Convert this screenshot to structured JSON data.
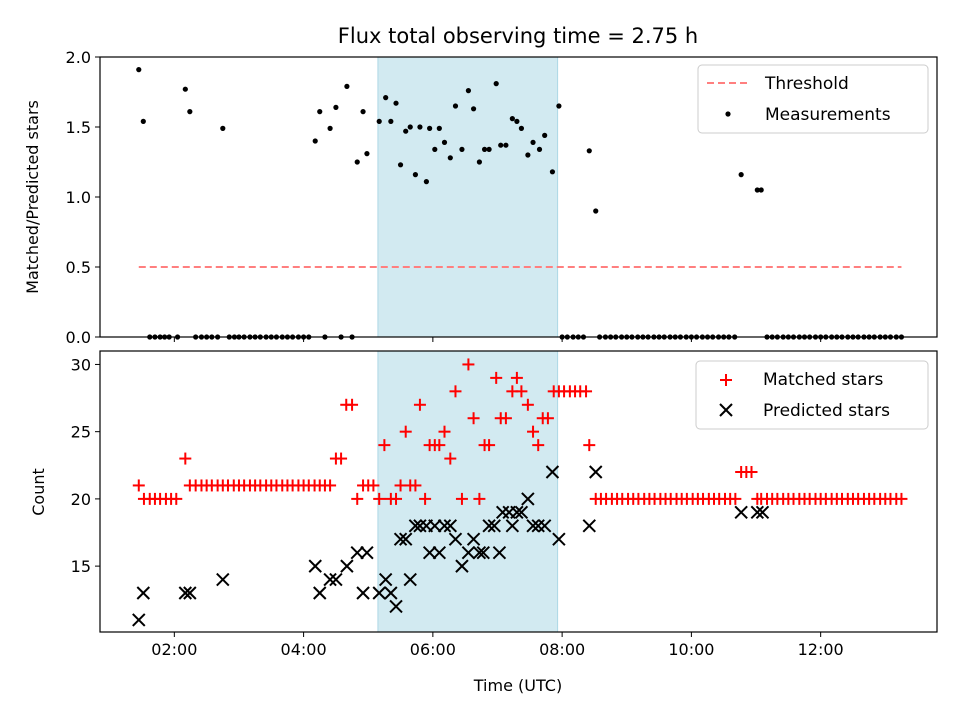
{
  "chart_data": {
    "title": "Flux total observing time = 2.75 h",
    "xlabel": "Time (UTC)",
    "x_unit": "hours",
    "xlim": [
      0.85,
      13.8
    ],
    "xticks": [
      {
        "value": 2,
        "label": "02:00"
      },
      {
        "value": 4,
        "label": "04:00"
      },
      {
        "value": 6,
        "label": "06:00"
      },
      {
        "value": 8,
        "label": "08:00"
      },
      {
        "value": 10,
        "label": "10:00"
      },
      {
        "value": 12,
        "label": "12:00"
      }
    ],
    "shaded_interval": {
      "start": 5.15,
      "end": 7.93,
      "color": "#add8e6"
    },
    "colors": {
      "threshold": "#ff7f7f",
      "measurements": "#000000",
      "matched": "#ff0000",
      "predicted": "#000000",
      "shade": "#add8e6"
    },
    "panels": [
      {
        "type": "scatter",
        "ylabel": "Matched/Predicted stars",
        "ylim": [
          0,
          2.0
        ],
        "yticks": [
          {
            "value": 0,
            "label": "0.0"
          },
          {
            "value": 0.5,
            "label": "0.5"
          },
          {
            "value": 1,
            "label": "1.0"
          },
          {
            "value": 1.5,
            "label": "1.5"
          },
          {
            "value": 2,
            "label": "2.0"
          }
        ],
        "legend": {
          "position": "top-right",
          "threshold_label": "Threshold",
          "measurements_label": "Measurements"
        },
        "threshold": {
          "value": 0.5,
          "x_start": 1.45,
          "x_end": 13.25
        },
        "measurements": [
          [
            1.45,
            1.91
          ],
          [
            1.52,
            1.54
          ],
          [
            2.17,
            1.77
          ],
          [
            2.24,
            1.61
          ],
          [
            2.75,
            1.49
          ],
          [
            4.18,
            1.4
          ],
          [
            4.25,
            1.61
          ],
          [
            4.41,
            1.49
          ],
          [
            4.5,
            1.64
          ],
          [
            4.67,
            1.79
          ],
          [
            4.83,
            1.25
          ],
          [
            4.92,
            1.61
          ],
          [
            4.98,
            1.31
          ],
          [
            5.17,
            1.54
          ],
          [
            5.27,
            1.71
          ],
          [
            5.35,
            1.54
          ],
          [
            5.43,
            1.67
          ],
          [
            5.5,
            1.23
          ],
          [
            5.58,
            1.47
          ],
          [
            5.65,
            1.5
          ],
          [
            5.73,
            1.16
          ],
          [
            5.8,
            1.5
          ],
          [
            5.9,
            1.11
          ],
          [
            5.95,
            1.49
          ],
          [
            6.03,
            1.34
          ],
          [
            6.1,
            1.49
          ],
          [
            6.18,
            1.39
          ],
          [
            6.27,
            1.28
          ],
          [
            6.35,
            1.65
          ],
          [
            6.45,
            1.34
          ],
          [
            6.55,
            1.76
          ],
          [
            6.63,
            1.63
          ],
          [
            6.72,
            1.25
          ],
          [
            6.8,
            1.34
          ],
          [
            6.87,
            1.34
          ],
          [
            6.98,
            1.81
          ],
          [
            7.05,
            1.37
          ],
          [
            7.13,
            1.37
          ],
          [
            7.23,
            1.56
          ],
          [
            7.3,
            1.54
          ],
          [
            7.37,
            1.49
          ],
          [
            7.47,
            1.3
          ],
          [
            7.55,
            1.39
          ],
          [
            7.65,
            1.34
          ],
          [
            7.73,
            1.44
          ],
          [
            7.85,
            1.18
          ],
          [
            7.95,
            1.65
          ],
          [
            8.42,
            1.33
          ],
          [
            8.52,
            0.9
          ],
          [
            10.77,
            1.16
          ],
          [
            11.02,
            1.05
          ],
          [
            11.08,
            1.05
          ]
        ],
        "zero_measurements": [
          1.62,
          1.7,
          1.78,
          1.85,
          1.92,
          2.05,
          2.33,
          2.42,
          2.5,
          2.58,
          2.67,
          2.85,
          2.93,
          3.0,
          3.08,
          3.17,
          3.25,
          3.33,
          3.42,
          3.5,
          3.58,
          3.67,
          3.75,
          3.83,
          3.92,
          4.0,
          4.08,
          4.33,
          4.58,
          4.75,
          8.0,
          8.08,
          8.17,
          8.25,
          8.33,
          8.58,
          8.67,
          8.75,
          8.83,
          8.92,
          9.0,
          9.08,
          9.17,
          9.25,
          9.33,
          9.42,
          9.5,
          9.58,
          9.67,
          9.75,
          9.83,
          9.92,
          10.0,
          10.08,
          10.17,
          10.25,
          10.33,
          10.42,
          10.5,
          10.58,
          10.67,
          11.17,
          11.25,
          11.33,
          11.42,
          11.5,
          11.58,
          11.67,
          11.75,
          11.83,
          11.92,
          12.0,
          12.08,
          12.17,
          12.25,
          12.33,
          12.42,
          12.5,
          12.58,
          12.67,
          12.75,
          12.83,
          12.92,
          13.0,
          13.08,
          13.17,
          13.25
        ]
      },
      {
        "type": "scatter",
        "ylabel": "Count",
        "ylim": [
          10.1,
          31.0
        ],
        "yticks": [
          {
            "value": 15,
            "label": "15"
          },
          {
            "value": 20,
            "label": "20"
          },
          {
            "value": 25,
            "label": "25"
          },
          {
            "value": 30,
            "label": "30"
          }
        ],
        "legend": {
          "position": "top-right",
          "matched_label": "Matched stars",
          "predicted_label": "Predicted stars"
        },
        "matched": [
          [
            1.45,
            21
          ],
          [
            1.53,
            20
          ],
          [
            1.62,
            20
          ],
          [
            1.7,
            20
          ],
          [
            1.78,
            20
          ],
          [
            1.87,
            20
          ],
          [
            1.95,
            20
          ],
          [
            2.03,
            20
          ],
          [
            2.17,
            23
          ],
          [
            2.24,
            21
          ],
          [
            2.33,
            21
          ],
          [
            2.42,
            21
          ],
          [
            2.5,
            21
          ],
          [
            2.58,
            21
          ],
          [
            2.67,
            21
          ],
          [
            2.75,
            21
          ],
          [
            2.83,
            21
          ],
          [
            2.92,
            21
          ],
          [
            3.0,
            21
          ],
          [
            3.08,
            21
          ],
          [
            3.17,
            21
          ],
          [
            3.25,
            21
          ],
          [
            3.33,
            21
          ],
          [
            3.42,
            21
          ],
          [
            3.5,
            21
          ],
          [
            3.58,
            21
          ],
          [
            3.67,
            21
          ],
          [
            3.75,
            21
          ],
          [
            3.83,
            21
          ],
          [
            3.92,
            21
          ],
          [
            4.0,
            21
          ],
          [
            4.08,
            21
          ],
          [
            4.17,
            21
          ],
          [
            4.25,
            21
          ],
          [
            4.33,
            21
          ],
          [
            4.41,
            21
          ],
          [
            4.5,
            23
          ],
          [
            4.58,
            23
          ],
          [
            4.66,
            27
          ],
          [
            4.75,
            27
          ],
          [
            4.83,
            20
          ],
          [
            4.92,
            21
          ],
          [
            5.0,
            21
          ],
          [
            5.08,
            21
          ],
          [
            5.17,
            20
          ],
          [
            5.25,
            24
          ],
          [
            5.35,
            20
          ],
          [
            5.43,
            20
          ],
          [
            5.5,
            21
          ],
          [
            5.58,
            25
          ],
          [
            5.65,
            21
          ],
          [
            5.73,
            21
          ],
          [
            5.8,
            27
          ],
          [
            5.88,
            20
          ],
          [
            5.95,
            24
          ],
          [
            6.03,
            24
          ],
          [
            6.1,
            24
          ],
          [
            6.18,
            25
          ],
          [
            6.27,
            23
          ],
          [
            6.35,
            28
          ],
          [
            6.45,
            20
          ],
          [
            6.55,
            30
          ],
          [
            6.63,
            26
          ],
          [
            6.72,
            20
          ],
          [
            6.8,
            24
          ],
          [
            6.87,
            24
          ],
          [
            6.98,
            29
          ],
          [
            7.05,
            26
          ],
          [
            7.13,
            26
          ],
          [
            7.23,
            28
          ],
          [
            7.3,
            29
          ],
          [
            7.37,
            28
          ],
          [
            7.47,
            27
          ],
          [
            7.55,
            25
          ],
          [
            7.63,
            24
          ],
          [
            7.7,
            26
          ],
          [
            7.78,
            26
          ],
          [
            7.87,
            28
          ],
          [
            7.95,
            28
          ],
          [
            8.03,
            28
          ],
          [
            8.12,
            28
          ],
          [
            8.2,
            28
          ],
          [
            8.28,
            28
          ],
          [
            8.37,
            28
          ],
          [
            8.42,
            24
          ],
          [
            8.52,
            20
          ],
          [
            8.6,
            20
          ],
          [
            8.68,
            20
          ],
          [
            8.77,
            20
          ],
          [
            8.85,
            20
          ],
          [
            8.93,
            20
          ],
          [
            9.02,
            20
          ],
          [
            9.1,
            20
          ],
          [
            9.18,
            20
          ],
          [
            9.27,
            20
          ],
          [
            9.35,
            20
          ],
          [
            9.43,
            20
          ],
          [
            9.52,
            20
          ],
          [
            9.6,
            20
          ],
          [
            9.68,
            20
          ],
          [
            9.77,
            20
          ],
          [
            9.85,
            20
          ],
          [
            9.93,
            20
          ],
          [
            10.02,
            20
          ],
          [
            10.1,
            20
          ],
          [
            10.18,
            20
          ],
          [
            10.27,
            20
          ],
          [
            10.35,
            20
          ],
          [
            10.43,
            20
          ],
          [
            10.52,
            20
          ],
          [
            10.6,
            20
          ],
          [
            10.68,
            20
          ],
          [
            10.77,
            22
          ],
          [
            10.85,
            22
          ],
          [
            10.93,
            22
          ],
          [
            11.02,
            20
          ],
          [
            11.08,
            20
          ],
          [
            11.17,
            20
          ],
          [
            11.25,
            20
          ],
          [
            11.33,
            20
          ],
          [
            11.42,
            20
          ],
          [
            11.5,
            20
          ],
          [
            11.58,
            20
          ],
          [
            11.67,
            20
          ],
          [
            11.75,
            20
          ],
          [
            11.83,
            20
          ],
          [
            11.92,
            20
          ],
          [
            12.0,
            20
          ],
          [
            12.08,
            20
          ],
          [
            12.17,
            20
          ],
          [
            12.25,
            20
          ],
          [
            12.33,
            20
          ],
          [
            12.42,
            20
          ],
          [
            12.5,
            20
          ],
          [
            12.58,
            20
          ],
          [
            12.67,
            20
          ],
          [
            12.75,
            20
          ],
          [
            12.83,
            20
          ],
          [
            12.92,
            20
          ],
          [
            13.0,
            20
          ],
          [
            13.08,
            20
          ],
          [
            13.17,
            20
          ],
          [
            13.25,
            20
          ]
        ],
        "predicted": [
          [
            1.45,
            11
          ],
          [
            1.52,
            13
          ],
          [
            2.17,
            13
          ],
          [
            2.24,
            13
          ],
          [
            2.75,
            14
          ],
          [
            4.18,
            15
          ],
          [
            4.25,
            13
          ],
          [
            4.41,
            14
          ],
          [
            4.5,
            14
          ],
          [
            4.67,
            15
          ],
          [
            4.83,
            16
          ],
          [
            4.92,
            13
          ],
          [
            4.98,
            16
          ],
          [
            5.17,
            13
          ],
          [
            5.27,
            14
          ],
          [
            5.35,
            13
          ],
          [
            5.43,
            12
          ],
          [
            5.5,
            17
          ],
          [
            5.58,
            17
          ],
          [
            5.65,
            14
          ],
          [
            5.73,
            18
          ],
          [
            5.8,
            18
          ],
          [
            5.9,
            18
          ],
          [
            5.95,
            16
          ],
          [
            6.03,
            18
          ],
          [
            6.1,
            16
          ],
          [
            6.18,
            18
          ],
          [
            6.27,
            18
          ],
          [
            6.35,
            17
          ],
          [
            6.45,
            15
          ],
          [
            6.55,
            16
          ],
          [
            6.63,
            17
          ],
          [
            6.72,
            16
          ],
          [
            6.78,
            16
          ],
          [
            6.87,
            18
          ],
          [
            6.95,
            18
          ],
          [
            7.03,
            16
          ],
          [
            7.08,
            19
          ],
          [
            7.18,
            19
          ],
          [
            7.23,
            18
          ],
          [
            7.3,
            19
          ],
          [
            7.37,
            19
          ],
          [
            7.47,
            20
          ],
          [
            7.55,
            18
          ],
          [
            7.63,
            18
          ],
          [
            7.73,
            18
          ],
          [
            7.85,
            22
          ],
          [
            7.95,
            17
          ],
          [
            8.42,
            18
          ],
          [
            8.52,
            22
          ],
          [
            10.77,
            19
          ],
          [
            11.02,
            19
          ],
          [
            11.1,
            19
          ]
        ]
      }
    ]
  }
}
